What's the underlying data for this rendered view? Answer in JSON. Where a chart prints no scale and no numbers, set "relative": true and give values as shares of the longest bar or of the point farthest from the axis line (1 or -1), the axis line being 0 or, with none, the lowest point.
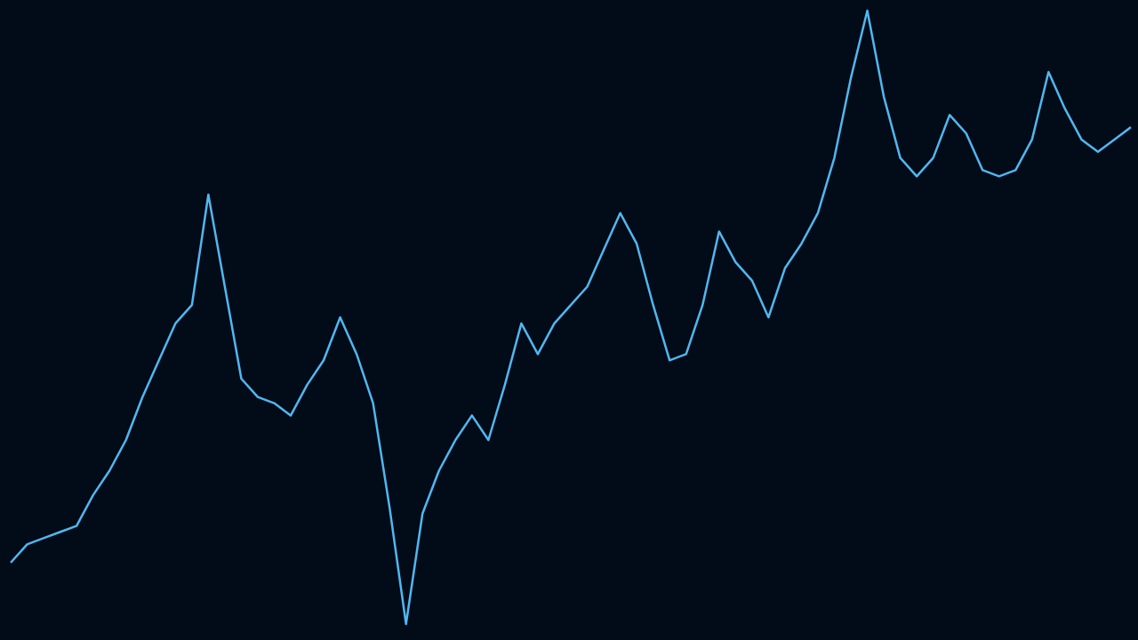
{
  "chart_data": {
    "type": "line",
    "relative": true,
    "marker": "none",
    "line_style": "solid",
    "categories": [
      null,
      null,
      null,
      null,
      null,
      null,
      null,
      null,
      null,
      null,
      null,
      null,
      null,
      null,
      null,
      null,
      null,
      null,
      null,
      null,
      null,
      null,
      null,
      null,
      null,
      null,
      null,
      null,
      null,
      null,
      null,
      null,
      null,
      null,
      null,
      null,
      null,
      null,
      null,
      null,
      null,
      null,
      null,
      null,
      null,
      null,
      null,
      null,
      null,
      null,
      null,
      null,
      null,
      null,
      null,
      null,
      null,
      null,
      null,
      null,
      null,
      null,
      null,
      null,
      null,
      null,
      null,
      null,
      null
    ],
    "series": [
      {
        "color": "#4fb8f0",
        "values": [
          0.1,
          0.13,
          0.14,
          0.15,
          0.16,
          0.21,
          0.25,
          0.3,
          0.37,
          0.43,
          0.49,
          0.52,
          0.7,
          0.55,
          0.4,
          0.37,
          0.36,
          0.34,
          0.39,
          0.43,
          0.5,
          0.44,
          0.36,
          0.19,
          0,
          0.18,
          0.25,
          0.3,
          0.34,
          0.3,
          0.39,
          0.49,
          0.44,
          0.49,
          0.52,
          0.55,
          0.61,
          0.67,
          0.62,
          0.52,
          0.43,
          0.44,
          0.52,
          0.64,
          0.59,
          0.56,
          0.5,
          0.58,
          0.62,
          0.67,
          0.76,
          0.89,
          1,
          0.86,
          0.76,
          0.73,
          0.76,
          0.83,
          0.8,
          0.74,
          0.73,
          0.74,
          0.79,
          0.9,
          0.84,
          0.79,
          0.77,
          0.79,
          0.81
        ]
      }
    ]
  }
}
